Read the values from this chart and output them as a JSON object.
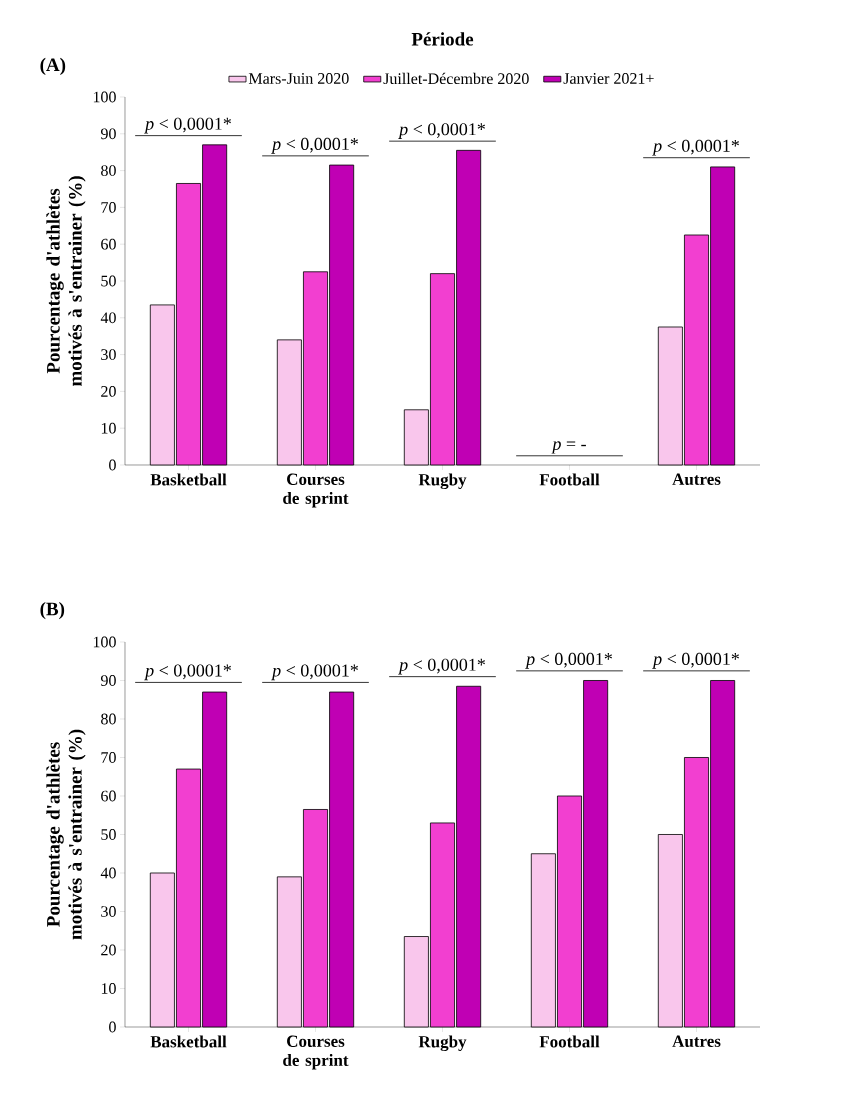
{
  "chart_data": [
    {
      "type": "bar",
      "title": "(A)",
      "legend_title": "Période",
      "legend": "top",
      "ylabel": "Pourcentage d'athlètes motivés à s'entrainer (%)",
      "categories": [
        "Basketball",
        "Courses de sprint",
        "Rugby",
        "Football",
        "Autres"
      ],
      "series": [
        {
          "name": "Mars-Juin 2020",
          "color": "#f9c6ec",
          "values": [
            43.5,
            34,
            15,
            null,
            37.5
          ]
        },
        {
          "name": "Juillet-Décembre 2020",
          "color": "#f23fd0",
          "values": [
            76.5,
            52.5,
            52,
            null,
            62.5
          ]
        },
        {
          "name": "Janvier 2021+",
          "color": "#c000b4",
          "values": [
            87,
            81.5,
            85.5,
            null,
            81
          ]
        }
      ],
      "ylim": [
        0,
        100
      ],
      "yticks": [
        0,
        10,
        20,
        30,
        40,
        50,
        60,
        70,
        80,
        90,
        100
      ],
      "annotations": [
        "*p* < 0,0001*",
        "*p* < 0,0001*",
        "*p* < 0,0001*",
        "*p* = -",
        "*p* < 0,0001*"
      ]
    },
    {
      "type": "bar",
      "title": "(B)",
      "ylabel": "Pourcentage d'athlètes motivés à s'entrainer (%)",
      "categories": [
        "Basketball",
        "Courses de sprint",
        "Rugby",
        "Football",
        "Autres"
      ],
      "series": [
        {
          "color": "#f9c6ec",
          "values": [
            40,
            39,
            23.5,
            45,
            50
          ]
        },
        {
          "color": "#f23fd0",
          "values": [
            67,
            56.5,
            53,
            60,
            70
          ]
        },
        {
          "color": "#c000b4",
          "values": [
            87,
            87,
            88.5,
            90,
            90
          ]
        }
      ],
      "ylim": [
        0,
        100
      ],
      "yticks": [
        0,
        10,
        20,
        30,
        40,
        50,
        60,
        70,
        80,
        90,
        100
      ],
      "annotations": [
        "*p* < 0,0001*",
        "*p* < 0,0001*",
        "*p* < 0,0001*",
        "*p* < 0,0001*",
        "*p* < 0,0001*"
      ]
    }
  ]
}
